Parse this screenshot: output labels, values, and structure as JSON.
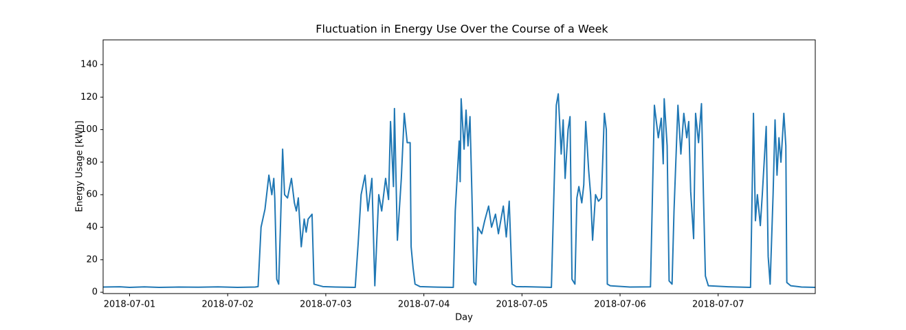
{
  "chart_data": {
    "type": "line",
    "title": "Fluctuation in Energy Use Over the Course of a Week",
    "xlabel": "Day",
    "ylabel": "Energy Usage [kWh]",
    "color": "#1f77b4",
    "x": [
      -0.27,
      -0.1,
      0,
      0.15,
      0.3,
      0.5,
      0.7,
      0.9,
      1.1,
      1.28,
      1.31,
      1.34,
      1.38,
      1.42,
      1.45,
      1.47,
      1.48,
      1.5,
      1.52,
      1.54,
      1.56,
      1.58,
      1.61,
      1.65,
      1.68,
      1.7,
      1.72,
      1.75,
      1.78,
      1.8,
      1.82,
      1.86,
      1.88,
      1.97,
      2.1,
      2.3,
      2.33,
      2.36,
      2.4,
      2.43,
      2.47,
      2.5,
      2.54,
      2.57,
      2.61,
      2.64,
      2.66,
      2.69,
      2.7,
      2.73,
      2.77,
      2.8,
      2.83,
      2.86,
      2.87,
      2.89,
      2.91,
      2.96,
      3.1,
      3.3,
      3.32,
      3.36,
      3.37,
      3.38,
      3.41,
      3.43,
      3.45,
      3.47,
      3.49,
      3.51,
      3.53,
      3.55,
      3.59,
      3.62,
      3.66,
      3.69,
      3.73,
      3.76,
      3.81,
      3.84,
      3.87,
      3.9,
      3.94,
      4.1,
      4.3,
      4.35,
      4.37,
      4.4,
      4.42,
      4.44,
      4.47,
      4.49,
      4.51,
      4.54,
      4.56,
      4.58,
      4.61,
      4.63,
      4.65,
      4.68,
      4.7,
      4.72,
      4.75,
      4.78,
      4.81,
      4.84,
      4.86,
      4.87,
      4.9,
      5.1,
      5.31,
      5.35,
      5.39,
      5.42,
      5.44,
      5.45,
      5.48,
      5.5,
      5.53,
      5.55,
      5.59,
      5.62,
      5.65,
      5.68,
      5.7,
      5.72,
      5.75,
      5.77,
      5.8,
      5.83,
      5.85,
      5.87,
      5.9,
      6.1,
      6.33,
      6.36,
      6.38,
      6.4,
      6.43,
      6.45,
      6.49,
      6.51,
      6.53,
      6.56,
      6.58,
      6.6,
      6.62,
      6.64,
      6.67,
      6.69,
      6.7,
      6.74,
      6.85,
      6.99
    ],
    "values": [
      3.2,
      3.4,
      3,
      3.3,
      3,
      3.2,
      3.1,
      3.3,
      3,
      3.2,
      3.5,
      40,
      51,
      72,
      60,
      70,
      58,
      8,
      5,
      45,
      88,
      60,
      58,
      70,
      55,
      50,
      58,
      28,
      45,
      37,
      45,
      48,
      5,
      3.5,
      3.2,
      3,
      30,
      60,
      72,
      50,
      70,
      4,
      60,
      50,
      70,
      57,
      105,
      65,
      113,
      32,
      70,
      110,
      92,
      92,
      28,
      15,
      5,
      3.5,
      3.2,
      3,
      50,
      93,
      68,
      119,
      88,
      112,
      90,
      108,
      60,
      6,
      4.5,
      40,
      36,
      44,
      53,
      40,
      48,
      36,
      53,
      34,
      56,
      5,
      3.5,
      3.3,
      3,
      115,
      122,
      85,
      106,
      70,
      100,
      108,
      8,
      5,
      58,
      65,
      55,
      66,
      105,
      75,
      60,
      32,
      60,
      56,
      58,
      110,
      100,
      5,
      4,
      3.2,
      3.3,
      115,
      95,
      107,
      79,
      119,
      90,
      7,
      5,
      50,
      115,
      85,
      110,
      95,
      105,
      62,
      33,
      110,
      92,
      116,
      60,
      10,
      4,
      3.4,
      3,
      110,
      44,
      60,
      41,
      60,
      102,
      22,
      5,
      60,
      106,
      72,
      95,
      80,
      110,
      90,
      6,
      4,
      3.2,
      3
    ],
    "xlim": [
      -0.27,
      6.99
    ],
    "xticks": [
      {
        "value": 0,
        "label": "2018-07-01"
      },
      {
        "value": 1,
        "label": "2018-07-02"
      },
      {
        "value": 2,
        "label": "2018-07-03"
      },
      {
        "value": 3,
        "label": "2018-07-04"
      },
      {
        "value": 4,
        "label": "2018-07-05"
      },
      {
        "value": 5,
        "label": "2018-07-06"
      },
      {
        "value": 6,
        "label": "2018-07-07"
      }
    ],
    "ylim": [
      -0.8,
      155.2
    ],
    "yticks": [
      0,
      20,
      40,
      60,
      80,
      100,
      120,
      140
    ],
    "grid": false
  }
}
